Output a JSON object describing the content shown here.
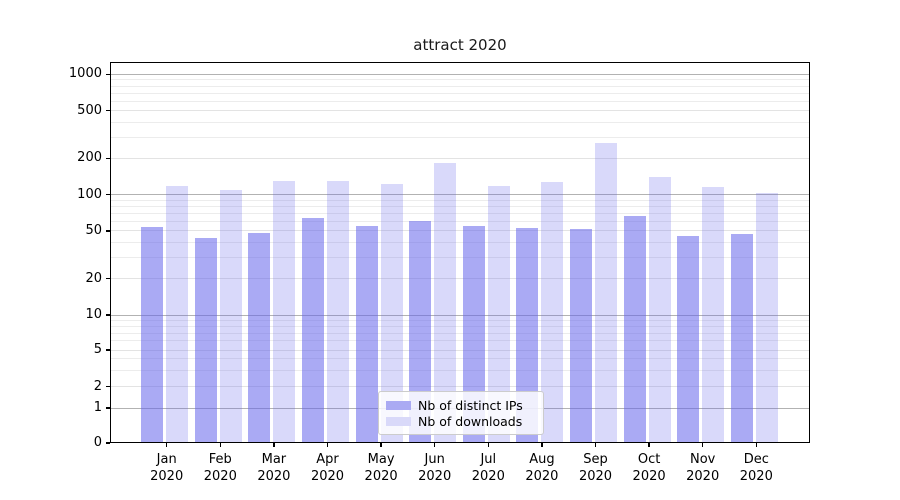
{
  "title": "attract 2020",
  "chart_data": {
    "type": "bar",
    "title": "attract 2020",
    "categories": [
      "Jan",
      "Feb",
      "Mar",
      "Apr",
      "May",
      "Jun",
      "Jul",
      "Aug",
      "Sep",
      "Oct",
      "Nov",
      "Dec"
    ],
    "category_year": "2020",
    "series": [
      {
        "name": "Nb of distinct IPs",
        "values": [
          54,
          44,
          48,
          64,
          55,
          61,
          55,
          53,
          52,
          67,
          45,
          47
        ]
      },
      {
        "name": "Nb of downloads",
        "values": [
          119,
          109,
          129,
          129,
          122,
          184,
          117,
          127,
          270,
          140,
          116,
          103
        ]
      }
    ],
    "y_scale": "symlog",
    "y_ticks": [
      0,
      1,
      2,
      5,
      10,
      20,
      50,
      100,
      200,
      500,
      1000
    ],
    "y_minor_gridlines": [
      3,
      4,
      6,
      7,
      8,
      9,
      30,
      40,
      60,
      70,
      80,
      90,
      300,
      400,
      600,
      700,
      800,
      900
    ],
    "ylim": [
      0,
      1265
    ],
    "xlabel": "",
    "ylabel": "",
    "grid": true,
    "legend_position": "lower center inside plot"
  },
  "colors": {
    "bar_ips_fill": "rgba(100,100,235,0.55)",
    "bar_downloads_fill": "rgba(100,100,235,0.245)",
    "legend_swatch_ips": "#aaaaf3",
    "legend_swatch_downloads": "#d9d9f9",
    "gridline_decade": "#b2b2b2",
    "gridline_labeled": "#e3e3e3",
    "gridline_minor": "#ececec",
    "axis_frame": "#000000",
    "background": "#ffffff"
  }
}
